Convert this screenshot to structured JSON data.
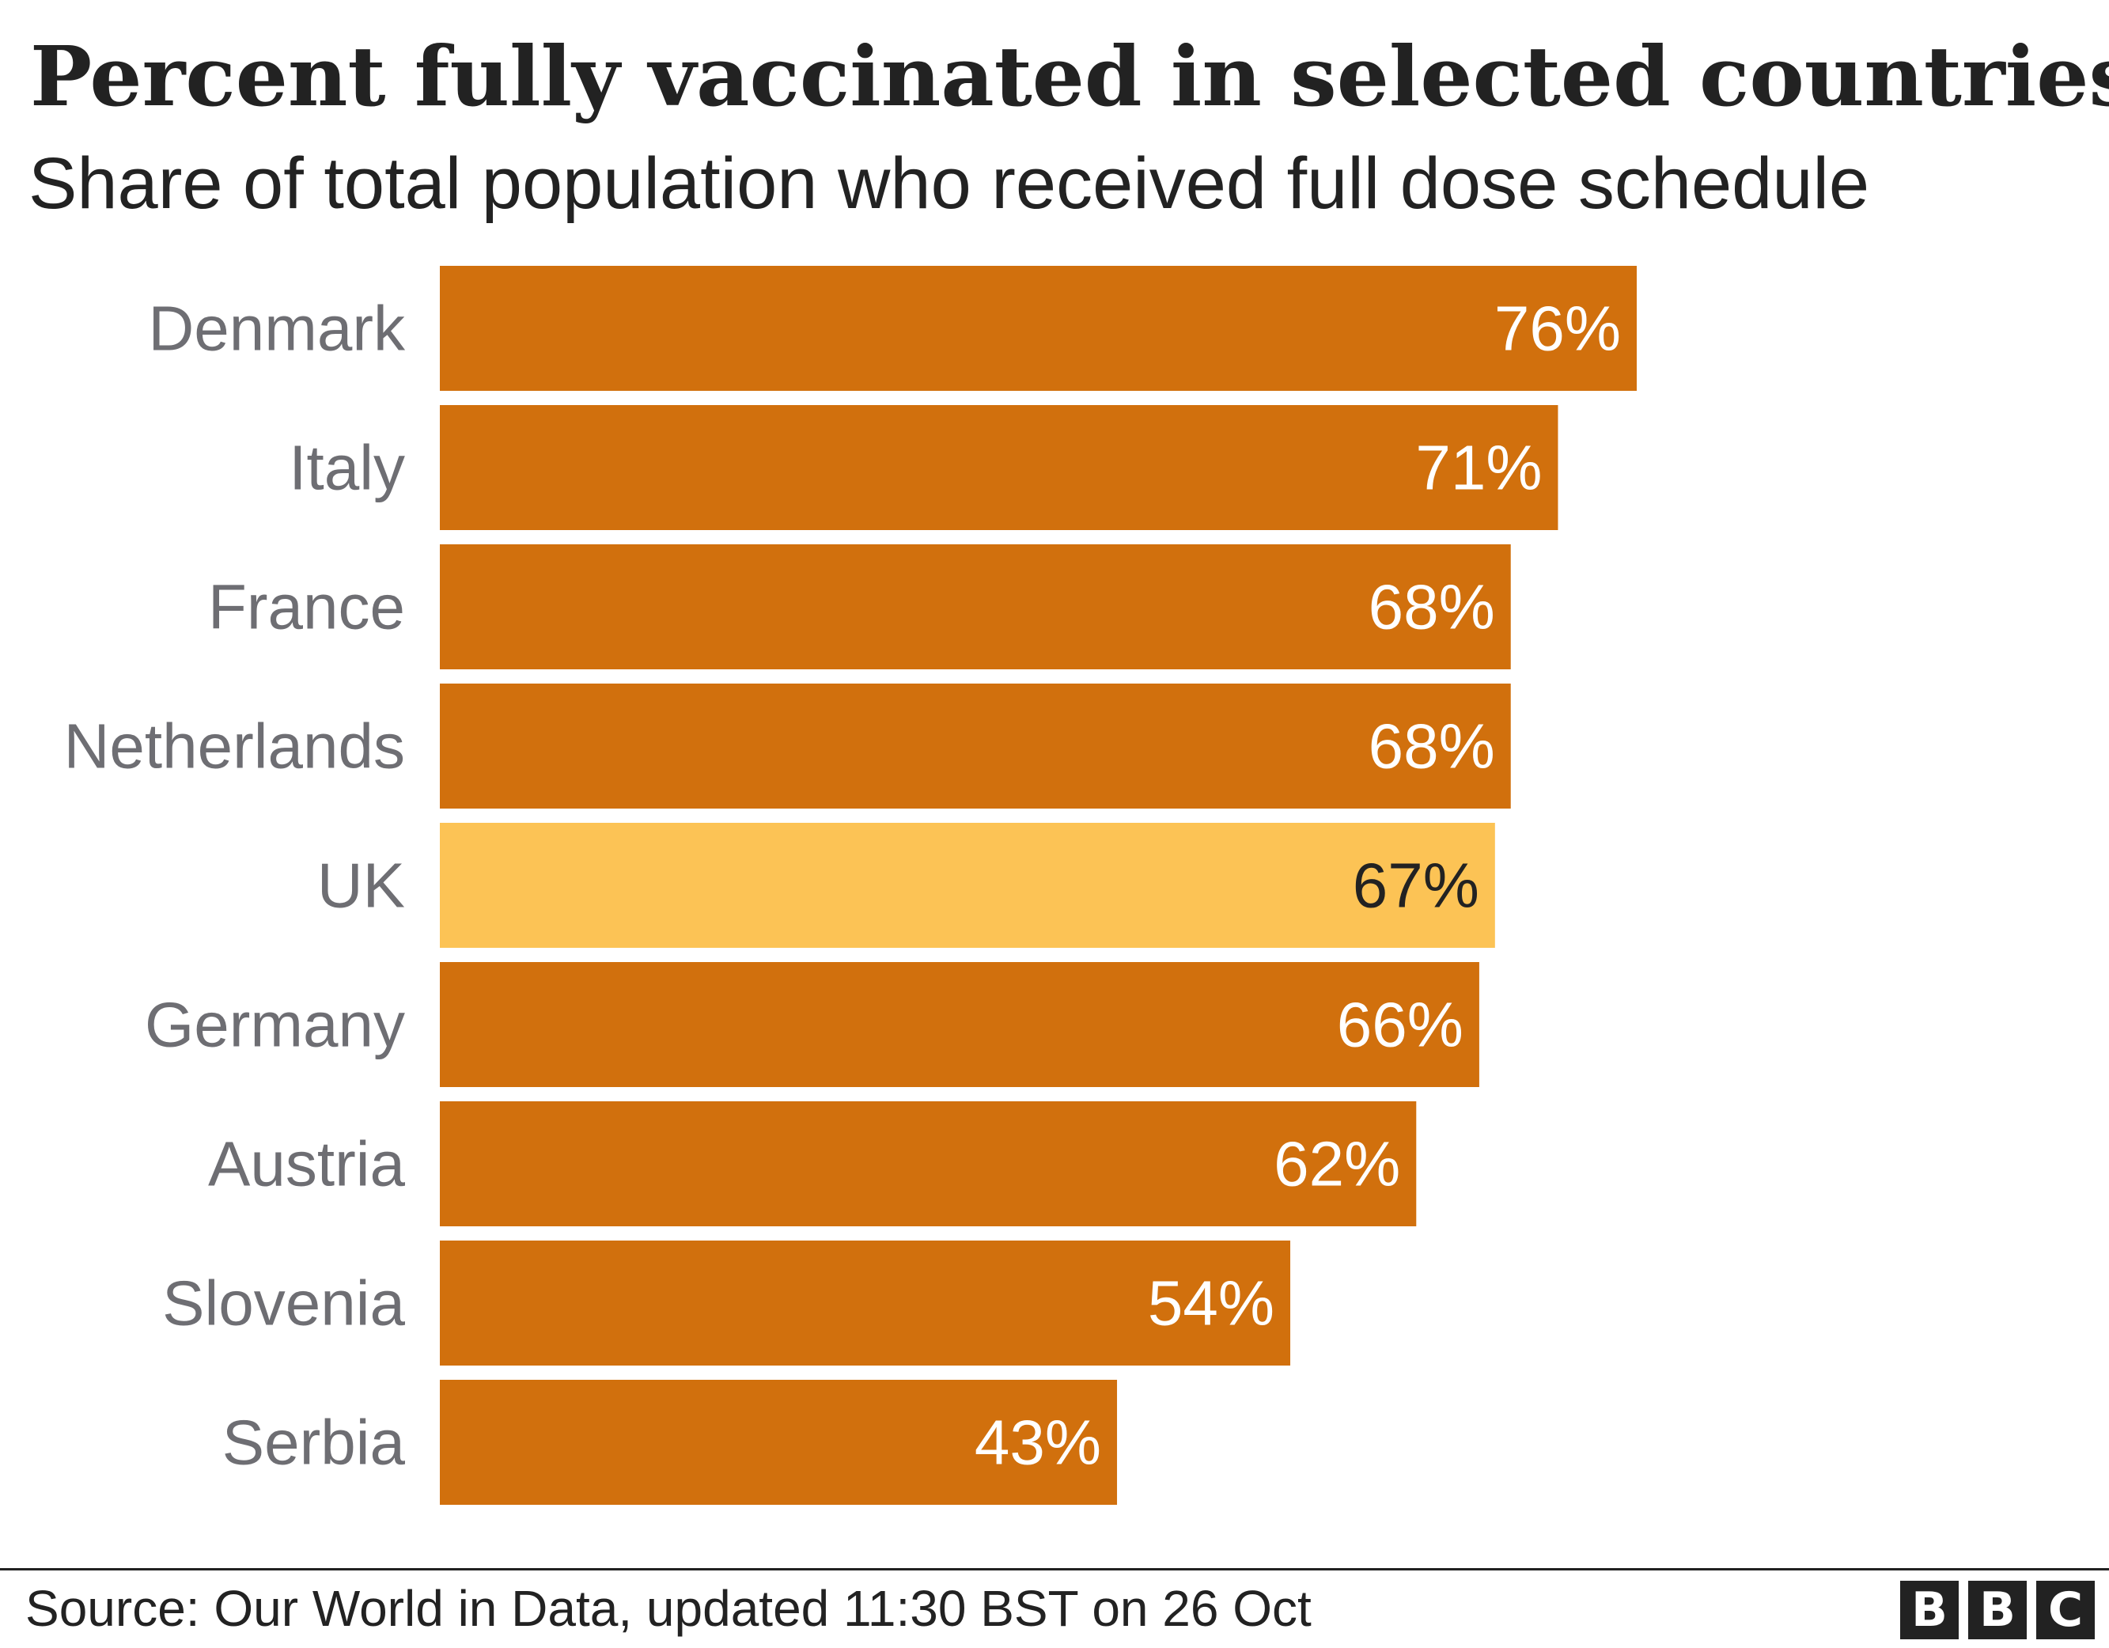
{
  "title": "Percent fully vaccinated in selected countries",
  "subtitle": "Share of total population who received full dose schedule",
  "source": "Source: Our World in Data, updated 11:30 BST on 26 Oct",
  "logo": [
    "B",
    "B",
    "C"
  ],
  "colors": {
    "bar": "#d1700d",
    "highlight": "#fcc355",
    "label_on_bar": "#ffffff",
    "label_on_highlight": "#222222",
    "category_label": "#6e6e73"
  },
  "chart_data": {
    "type": "bar",
    "orientation": "horizontal",
    "categories": [
      "Denmark",
      "Italy",
      "France",
      "Netherlands",
      "UK",
      "Germany",
      "Austria",
      "Slovenia",
      "Serbia"
    ],
    "values": [
      76,
      71,
      68,
      68,
      67,
      66,
      62,
      54,
      43
    ],
    "value_labels": [
      "76%",
      "71%",
      "68%",
      "68%",
      "67%",
      "66%",
      "62%",
      "54%",
      "43%"
    ],
    "highlight": "UK",
    "unit": "%",
    "xlim": [
      0,
      100
    ],
    "grid": false,
    "legend": "none"
  }
}
